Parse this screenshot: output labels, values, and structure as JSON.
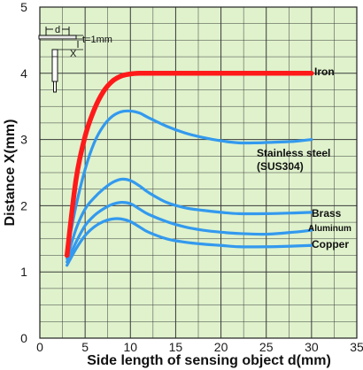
{
  "chart_data": {
    "type": "line",
    "xlabel": "Side length of sensing object d(mm)",
    "ylabel": "Distance X(mm)",
    "xlim": [
      0,
      35
    ],
    "ylim": [
      0,
      5
    ],
    "x_ticks": [
      "0",
      "5",
      "10",
      "15",
      "20",
      "25",
      "30",
      "35"
    ],
    "y_ticks": [
      "0",
      "1",
      "2",
      "3",
      "4",
      "5"
    ],
    "grid": true,
    "colors": {
      "background": "#dff2cc",
      "grid": "#3a3a3a",
      "iron": "#ff1a1a",
      "other": "#3399ee"
    },
    "series": [
      {
        "name": "Iron",
        "x": [
          3,
          4,
          5,
          6,
          7,
          8,
          9,
          10,
          11,
          12,
          15,
          20,
          25,
          30
        ],
        "y": [
          1.25,
          2.4,
          3.05,
          3.45,
          3.72,
          3.88,
          3.96,
          3.99,
          4.0,
          4.0,
          4.0,
          4.0,
          4.0,
          4.0
        ]
      },
      {
        "name": "Stainless steel\n(SUS304)",
        "x": [
          3,
          4,
          5,
          6,
          7,
          8,
          9,
          10,
          11,
          12,
          14,
          16,
          18,
          20,
          22,
          24,
          26,
          28,
          30
        ],
        "y": [
          1.3,
          2.0,
          2.55,
          2.95,
          3.2,
          3.35,
          3.42,
          3.43,
          3.4,
          3.33,
          3.2,
          3.1,
          3.03,
          2.98,
          2.95,
          2.95,
          2.96,
          2.97,
          3.0
        ]
      },
      {
        "name": "Brass",
        "x": [
          3,
          4,
          5,
          6,
          7,
          8,
          9,
          10,
          11,
          12,
          14,
          16,
          18,
          20,
          22,
          25,
          28,
          30
        ],
        "y": [
          1.2,
          1.65,
          1.95,
          2.12,
          2.25,
          2.35,
          2.4,
          2.38,
          2.3,
          2.2,
          2.05,
          1.97,
          1.93,
          1.9,
          1.88,
          1.88,
          1.89,
          1.9
        ]
      },
      {
        "name": "Aluminum",
        "x": [
          3,
          4,
          5,
          6,
          7,
          8,
          9,
          10,
          11,
          12,
          14,
          16,
          18,
          20,
          22,
          25,
          28,
          30
        ],
        "y": [
          1.15,
          1.45,
          1.7,
          1.85,
          1.95,
          2.02,
          2.05,
          2.03,
          1.95,
          1.87,
          1.76,
          1.68,
          1.63,
          1.6,
          1.58,
          1.57,
          1.6,
          1.63
        ]
      },
      {
        "name": "Copper",
        "x": [
          3,
          4,
          5,
          6,
          7,
          8,
          9,
          10,
          11,
          12,
          14,
          16,
          18,
          20,
          22,
          25,
          28,
          30
        ],
        "y": [
          1.1,
          1.35,
          1.55,
          1.68,
          1.76,
          1.8,
          1.8,
          1.76,
          1.68,
          1.6,
          1.5,
          1.45,
          1.42,
          1.4,
          1.38,
          1.38,
          1.39,
          1.4
        ]
      }
    ],
    "inset": {
      "d_label": "d",
      "t_label": "t=1mm",
      "x_label": "X"
    }
  }
}
